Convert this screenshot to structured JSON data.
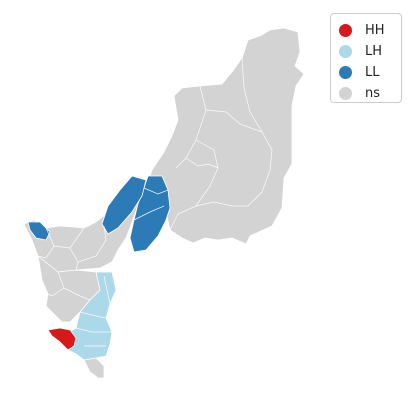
{
  "map": {
    "legend": [
      {
        "label": "HH",
        "color": "#d7191c"
      },
      {
        "label": "LH",
        "color": "#abd9e9"
      },
      {
        "label": "LL",
        "color": "#2c7bb6"
      },
      {
        "label": "ns",
        "color": "#d3d3d3"
      }
    ],
    "colors": {
      "ns": "#d3d3d3",
      "hh": "#d7191c",
      "lh": "#abd9e9",
      "ll": "#2c7bb6",
      "boundary": "#ffffff"
    }
  }
}
